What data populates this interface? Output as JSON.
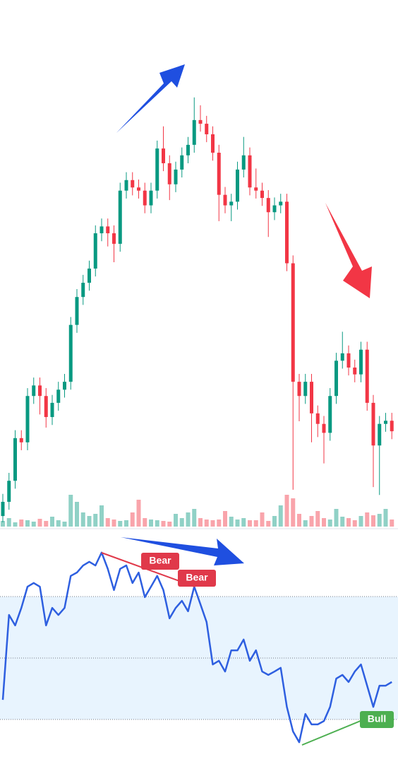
{
  "chart_data": [
    {
      "type": "candlestick",
      "up_color": "#089981",
      "down_color": "#f23645",
      "ylim": [
        0,
        100
      ],
      "volume_ylim": [
        0,
        100
      ],
      "open": [
        2,
        4.7,
        8.7,
        16.8,
        16,
        24.8,
        26.8,
        24.8,
        20.8,
        23.5,
        26,
        27.5,
        38.3,
        43.6,
        46.3,
        49,
        55.7,
        57,
        55.7,
        53.7,
        63.8,
        65.8,
        64.4,
        63.8,
        61,
        63.8,
        71.8,
        69,
        65,
        67.8,
        70.5,
        72.5,
        77.2,
        76.5,
        74.5,
        71,
        63,
        61,
        61.7,
        67.8,
        70.5,
        64.4,
        63.8,
        62.4,
        59.7,
        61,
        61.7,
        50,
        27.5,
        24.8,
        27.5,
        21.5,
        19.5,
        17.8,
        24.8,
        31.5,
        32.9,
        30.2,
        28.9,
        33.6,
        23.5,
        15.4,
        19.5,
        20.1
      ],
      "high": [
        6.2,
        10.2,
        18.3,
        18.3,
        26.3,
        28.3,
        28.3,
        26.3,
        25,
        27.5,
        29,
        39.8,
        45.1,
        47.8,
        50.5,
        57.2,
        58.5,
        58.5,
        57.2,
        65.3,
        67.3,
        67.3,
        65.9,
        65.3,
        65.3,
        73.3,
        76,
        70.5,
        69.3,
        72,
        74,
        81.5,
        80,
        78,
        76,
        72.5,
        64.5,
        63.2,
        69.3,
        74,
        72,
        68,
        65.3,
        63.9,
        62.5,
        63.2,
        63.2,
        51.5,
        29,
        29,
        29,
        23,
        21,
        26.3,
        33,
        37,
        34.4,
        31.7,
        35.1,
        35.1,
        25,
        21,
        21.6,
        21.6
      ],
      "low": [
        0.8,
        3.2,
        7.2,
        14.5,
        14.5,
        23.3,
        21.3,
        18.8,
        19.3,
        22,
        24.5,
        26,
        36.8,
        42.1,
        44.8,
        47.5,
        54.2,
        53.2,
        50.2,
        52.2,
        62.3,
        62.9,
        62.3,
        59.5,
        59.5,
        62.3,
        67.5,
        62,
        63.5,
        66.3,
        69,
        71,
        75,
        73,
        69.5,
        58,
        59.5,
        58,
        60.2,
        66.3,
        62.9,
        62.3,
        60.9,
        55,
        58.2,
        59.5,
        48.5,
        7,
        20,
        23.3,
        16,
        17,
        12,
        16.3,
        23.3,
        30,
        28.7,
        27.4,
        27.4,
        22,
        7.5,
        6,
        18,
        16.6
      ],
      "close": [
        4.7,
        8.7,
        16.8,
        16,
        24.8,
        26.8,
        24.8,
        20.8,
        23.5,
        26,
        27.5,
        38.3,
        43.6,
        46.3,
        49,
        55.7,
        57,
        55.7,
        53.7,
        63.8,
        65.8,
        64.4,
        63.8,
        61,
        63.8,
        71.8,
        69,
        65,
        67.8,
        70.5,
        72.5,
        77.2,
        76.5,
        74.5,
        71,
        63,
        61,
        61.7,
        67.8,
        70.5,
        64.4,
        63.8,
        62.4,
        59.7,
        61,
        61.7,
        50,
        27.5,
        24.8,
        27.5,
        21.5,
        19.5,
        17.8,
        24.8,
        31.5,
        32.9,
        30.2,
        28.9,
        33.6,
        23.5,
        15.4,
        19.5,
        20.1,
        18.1
      ],
      "volume": [
        8,
        12,
        6,
        10,
        9,
        7,
        11,
        8,
        14,
        9,
        7,
        45,
        35,
        20,
        15,
        18,
        30,
        12,
        10,
        8,
        9,
        20,
        38,
        12,
        10,
        9,
        8,
        7,
        18,
        12,
        20,
        25,
        12,
        10,
        9,
        10,
        22,
        14,
        10,
        12,
        9,
        9,
        20,
        8,
        15,
        30,
        45,
        40,
        18,
        9,
        15,
        22,
        12,
        10,
        25,
        14,
        12,
        9,
        15,
        20,
        16,
        18,
        25,
        10
      ]
    },
    {
      "type": "line",
      "color": "#2e5fe0",
      "ylim": [
        17.8,
        91.6
      ],
      "levels": [
        30,
        50,
        70
      ],
      "values": [
        36.4,
        64,
        60.6,
        66.3,
        73.2,
        74.4,
        73.2,
        60.6,
        66.3,
        64,
        66.3,
        76.7,
        77.8,
        80.1,
        81.3,
        80.1,
        84.3,
        79,
        72.1,
        79,
        80.1,
        74.4,
        77.8,
        69.8,
        73.2,
        76.7,
        72.1,
        62.9,
        66.3,
        68.6,
        65.2,
        73.2,
        67.5,
        61.7,
        47.9,
        49.1,
        45.6,
        52.5,
        52.5,
        56,
        49.1,
        52.5,
        45.6,
        44.5,
        45.6,
        46.8,
        34.1,
        26.1,
        22.6,
        31.8,
        28.4,
        28.4,
        29.5,
        34.1,
        43.3,
        44.5,
        42.2,
        45.6,
        47.9,
        41,
        34.1,
        41,
        41,
        42.2
      ],
      "annotations": [
        "Bear",
        "Bear",
        "Bull"
      ]
    }
  ]
}
